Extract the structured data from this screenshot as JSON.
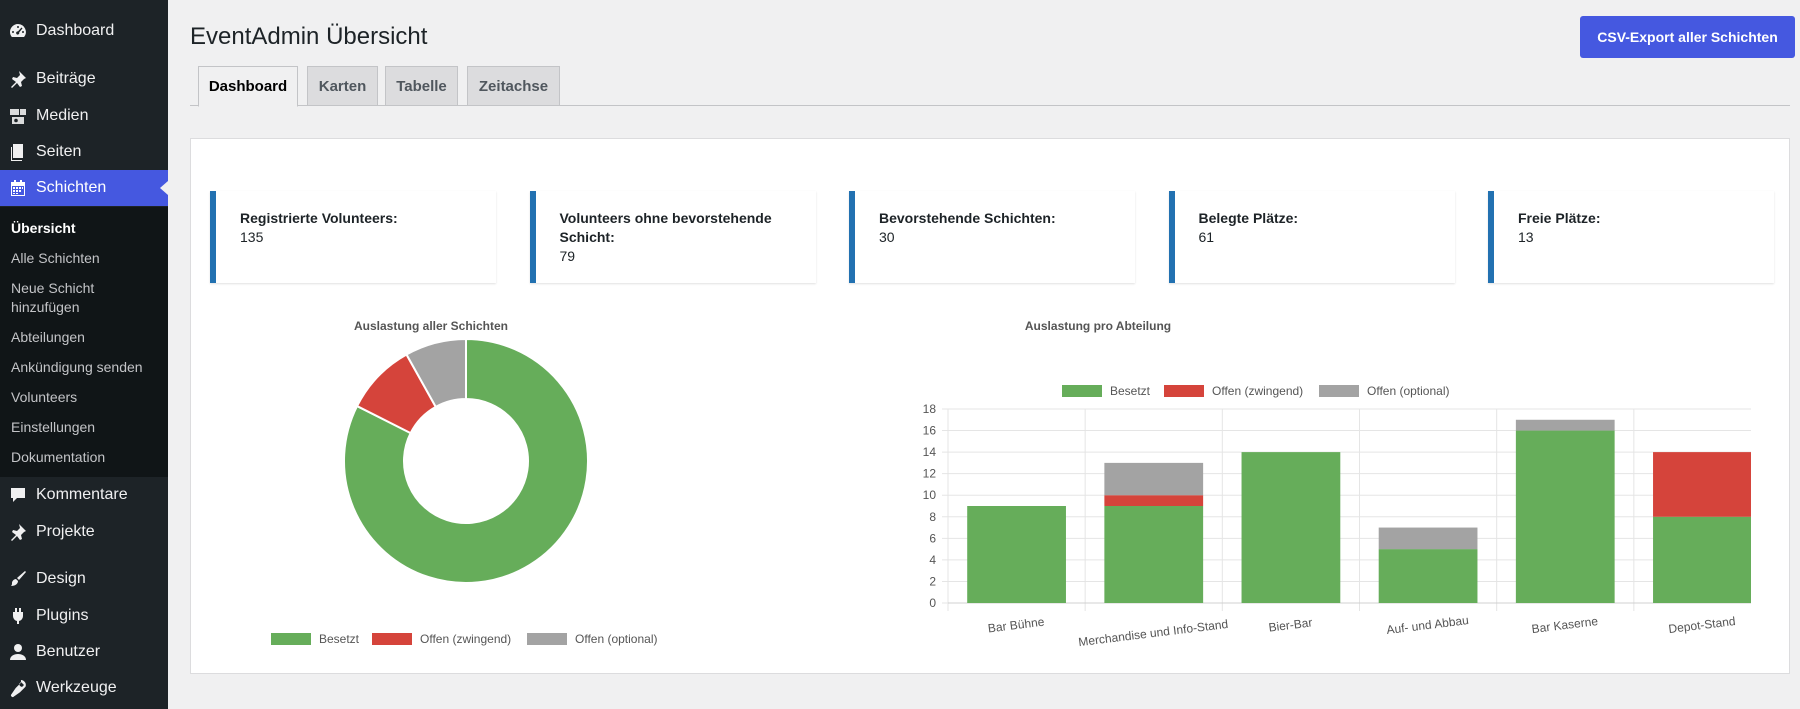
{
  "sidebar": {
    "items": [
      {
        "label": "Dashboard",
        "icon": "dashboard-icon"
      },
      {
        "label": "Beiträge",
        "icon": "pin-icon"
      },
      {
        "label": "Medien",
        "icon": "media-icon"
      },
      {
        "label": "Seiten",
        "icon": "pages-icon"
      },
      {
        "label": "Schichten",
        "icon": "calendar-icon"
      },
      {
        "label": "Kommentare",
        "icon": "comment-icon"
      },
      {
        "label": "Projekte",
        "icon": "pin-icon"
      },
      {
        "label": "Design",
        "icon": "brush-icon"
      },
      {
        "label": "Plugins",
        "icon": "plugin-icon"
      },
      {
        "label": "Benutzer",
        "icon": "user-icon"
      },
      {
        "label": "Werkzeuge",
        "icon": "wrench-icon"
      }
    ],
    "submenu": [
      "Übersicht",
      "Alle Schichten",
      "Neue Schicht hinzufügen",
      "Abteilungen",
      "Ankündigung senden",
      "Volunteers",
      "Einstellungen",
      "Dokumentation"
    ]
  },
  "header": {
    "title": "EventAdmin Übersicht",
    "export_label": "CSV-Export aller Schichten"
  },
  "tabs": [
    {
      "label": "Dashboard",
      "active": true
    },
    {
      "label": "Karten",
      "active": false
    },
    {
      "label": "Tabelle",
      "active": false
    },
    {
      "label": "Zeitachse",
      "active": false
    }
  ],
  "stats": [
    {
      "label": "Registrierte Volunteers:",
      "value": "135"
    },
    {
      "label": "Volunteers ohne bevorstehende Schicht:",
      "value": "79"
    },
    {
      "label": "Bevorstehende Schichten:",
      "value": "30"
    },
    {
      "label": "Belegte Plätze:",
      "value": "61"
    },
    {
      "label": "Freie Plätze:",
      "value": "13"
    }
  ],
  "colors": {
    "accent": "#4558e0",
    "card_border": "#2271b1",
    "besetzt": "#66ad5a",
    "zwingend": "#d5443b",
    "optional": "#a3a3a3"
  },
  "chart_data": [
    {
      "type": "pie",
      "title": "Auslastung aller Schichten",
      "labels": [
        "Besetzt",
        "Offen (zwingend)",
        "Offen (optional)"
      ],
      "values": [
        61,
        7,
        6
      ],
      "legend": "bottom"
    },
    {
      "type": "bar",
      "title": "Auslastung pro Abteilung",
      "stacked": true,
      "categories": [
        "Bar Bühne",
        "Merchandise und Info-Stand",
        "Bier-Bar",
        "Auf- und Abbau",
        "Bar Kaserne",
        "Depot-Stand"
      ],
      "series": [
        {
          "name": "Besetzt",
          "values": [
            9,
            9,
            14,
            5,
            16,
            8
          ]
        },
        {
          "name": "Offen (zwingend)",
          "values": [
            0,
            1,
            0,
            0,
            0,
            6
          ]
        },
        {
          "name": "Offen (optional)",
          "values": [
            0,
            3,
            0,
            2,
            1,
            0
          ]
        }
      ],
      "ylim": [
        0,
        18
      ],
      "yticks": [
        0,
        2,
        4,
        6,
        8,
        10,
        12,
        14,
        16,
        18
      ],
      "grid": true,
      "legend": "top"
    }
  ]
}
